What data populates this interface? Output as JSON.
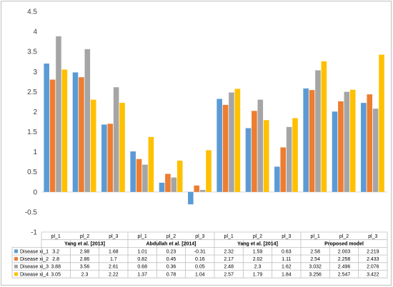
{
  "chart_data": {
    "type": "bar",
    "title": "",
    "xlabel": "",
    "ylabel": "",
    "ylim": [
      -1,
      4.5
    ],
    "yticks": [
      "-1",
      "-0.5",
      "0",
      "0.5",
      "1",
      "1.5",
      "2",
      "2.5",
      "3",
      "3.5",
      "4",
      "4.5"
    ],
    "grid": false,
    "legend_position": "bottom-table",
    "groups": [
      {
        "label": "Yang et al. [2013]",
        "categories": [
          "pl_1",
          "pl_2",
          "pl_3"
        ]
      },
      {
        "label": "Abdullah et al. [2014]",
        "categories": [
          "pl_1",
          "pl_2",
          "pl_3"
        ]
      },
      {
        "label": "Yang et al. [2014]",
        "categories": [
          "pl_1",
          "pl_2",
          "pl_3"
        ]
      },
      {
        "label": "Proposed model",
        "categories": [
          "pl_1",
          "pl_2",
          "pl_3"
        ]
      }
    ],
    "series": [
      {
        "name": "Disease xi_1",
        "color": "#5b9bd5",
        "values": [
          3.2,
          2.98,
          1.68,
          1.01,
          0.23,
          -0.31,
          2.32,
          1.59,
          0.63,
          2.58,
          2.003,
          2.219
        ],
        "labels": [
          "3.2",
          "2.98",
          "1.68",
          "1.01",
          "0.23",
          "-0.31",
          "2.32",
          "1.59",
          "0.63",
          "2.58",
          "2.003",
          "2.219"
        ]
      },
      {
        "name": "Disease xi_2",
        "color": "#ed7d31",
        "values": [
          2.8,
          2.86,
          1.7,
          0.82,
          0.45,
          0.16,
          2.17,
          2.02,
          1.11,
          2.54,
          2.258,
          2.433
        ],
        "labels": [
          "2.8",
          "2.86",
          "1.7",
          "0.82",
          "0.45",
          "0.16",
          "2.17",
          "2.02",
          "1.11",
          "2.54",
          "2.258",
          "2.433"
        ]
      },
      {
        "name": "Disease xi_3",
        "color": "#a5a5a5",
        "values": [
          3.88,
          3.56,
          2.61,
          0.68,
          0.36,
          0.05,
          2.48,
          2.3,
          1.62,
          3.032,
          2.496,
          2.076
        ],
        "labels": [
          "3.88",
          "3.56",
          "2.61",
          "0.68",
          "0.36",
          "0.05",
          "2.48",
          "2.3",
          "1.62",
          "3.032",
          "2.496",
          "2.076"
        ]
      },
      {
        "name": "Disease xi_4",
        "color": "#ffc000",
        "values": [
          3.05,
          2.3,
          2.22,
          1.37,
          0.78,
          1.04,
          2.57,
          1.79,
          1.84,
          3.256,
          2.547,
          3.422
        ],
        "labels": [
          "3.05",
          "2.3",
          "2.22",
          "1.37",
          "0.78",
          "1.04",
          "2.57",
          "1.79",
          "1.84",
          "3.256",
          "2.547",
          "3.422"
        ]
      }
    ]
  }
}
